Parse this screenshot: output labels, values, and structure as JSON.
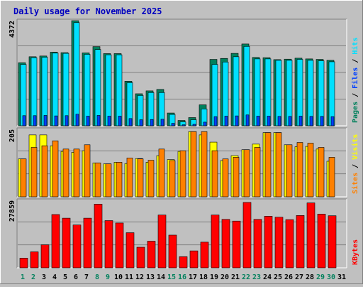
{
  "chart_data": {
    "type": "bar",
    "title": "Daily usage for November 2025",
    "categories": [
      "1",
      "2",
      "3",
      "4",
      "5",
      "6",
      "7",
      "8",
      "9",
      "10",
      "11",
      "12",
      "13",
      "14",
      "15",
      "16",
      "17",
      "18",
      "19",
      "20",
      "21",
      "22",
      "23",
      "24",
      "25",
      "26",
      "27",
      "28",
      "29",
      "30",
      "31"
    ],
    "weekend_days": [
      "1",
      "2",
      "8",
      "9",
      "15",
      "16",
      "22",
      "23",
      "29",
      "30"
    ],
    "panels": [
      {
        "id": "top",
        "max_label": "4372",
        "ylim": [
          0,
          4372
        ],
        "legend": [
          "Hits",
          "/",
          "Files",
          "/",
          "Pages"
        ],
        "series": [
          {
            "name": "Hits",
            "color": "#00805c",
            "values": [
              2620,
              2870,
              2900,
              3060,
              3040,
              4370,
              3030,
              3290,
              3000,
              3000,
              1850,
              1330,
              1450,
              1510,
              530,
              220,
              340,
              870,
              2760,
              2800,
              3010,
              3400,
              2840,
              2830,
              2750,
              2770,
              2810,
              2780,
              2760,
              2720,
              0
            ]
          },
          {
            "name": "Files",
            "color": "#00e0ff",
            "values": [
              2550,
              2830,
              2850,
              3020,
              3010,
              4290,
              2970,
              3170,
              2950,
              2950,
              1790,
              1260,
              1380,
              1380,
              470,
              160,
              250,
              700,
              2550,
              2650,
              2870,
              3300,
              2780,
              2780,
              2720,
              2720,
              2760,
              2720,
              2700,
              2660,
              0
            ]
          },
          {
            "name": "Pages",
            "color": "#0040ff",
            "values": [
              420,
              420,
              430,
              410,
              420,
              480,
              400,
              430,
              400,
              400,
              300,
              250,
              260,
              270,
              100,
              40,
              60,
              150,
              380,
              400,
              410,
              450,
              400,
              400,
              390,
              390,
              400,
              390,
              390,
              380,
              0
            ]
          }
        ],
        "legend_colors": [
          "#00805c",
          "#000000",
          "#0040ff",
          "#000000",
          "#00e0ff"
        ]
      },
      {
        "id": "middle",
        "max_label": "205",
        "ylim": [
          0,
          205
        ],
        "legend": [
          "Visits",
          "/",
          "Sites"
        ],
        "series": [
          {
            "name": "Visits",
            "color": "#ffff00",
            "values": [
              115,
              188,
              188,
              155,
              138,
              135,
              140,
              103,
              100,
              105,
              101,
              116,
              105,
              125,
              113,
              138,
              198,
              188,
              166,
              110,
              125,
              143,
              160,
              195,
              195,
              158,
              152,
              153,
              145,
              108,
              0
            ]
          },
          {
            "name": "Sites",
            "color": "#ff8000",
            "values": [
              115,
              150,
              155,
              170,
              145,
              145,
              158,
              103,
              100,
              105,
              118,
              115,
              111,
              145,
              110,
              140,
              198,
              198,
              140,
              115,
              120,
              143,
              150,
              195,
              195,
              158,
              165,
              163,
              150,
              120,
              0
            ]
          }
        ],
        "legend_colors": [
          "#ff8000",
          "#000000",
          "#ffff00"
        ]
      },
      {
        "id": "bottom",
        "max_label": "27859",
        "ylim": [
          0,
          27859
        ],
        "legend": [
          "KBytes"
        ],
        "series": [
          {
            "name": "KBytes",
            "color": "#ff0000",
            "values": [
              4000,
              6600,
              9500,
              22000,
              20500,
              17700,
              20500,
              26300,
              19500,
              18500,
              14500,
              8500,
              11000,
              21800,
              13500,
              4600,
              7000,
              10600,
              21800,
              20000,
              19300,
              27000,
              20000,
              21300,
              20900,
              19900,
              21600,
              26800,
              22200,
              21500,
              0
            ]
          }
        ],
        "legend_colors": [
          "#ff0000"
        ]
      }
    ]
  }
}
